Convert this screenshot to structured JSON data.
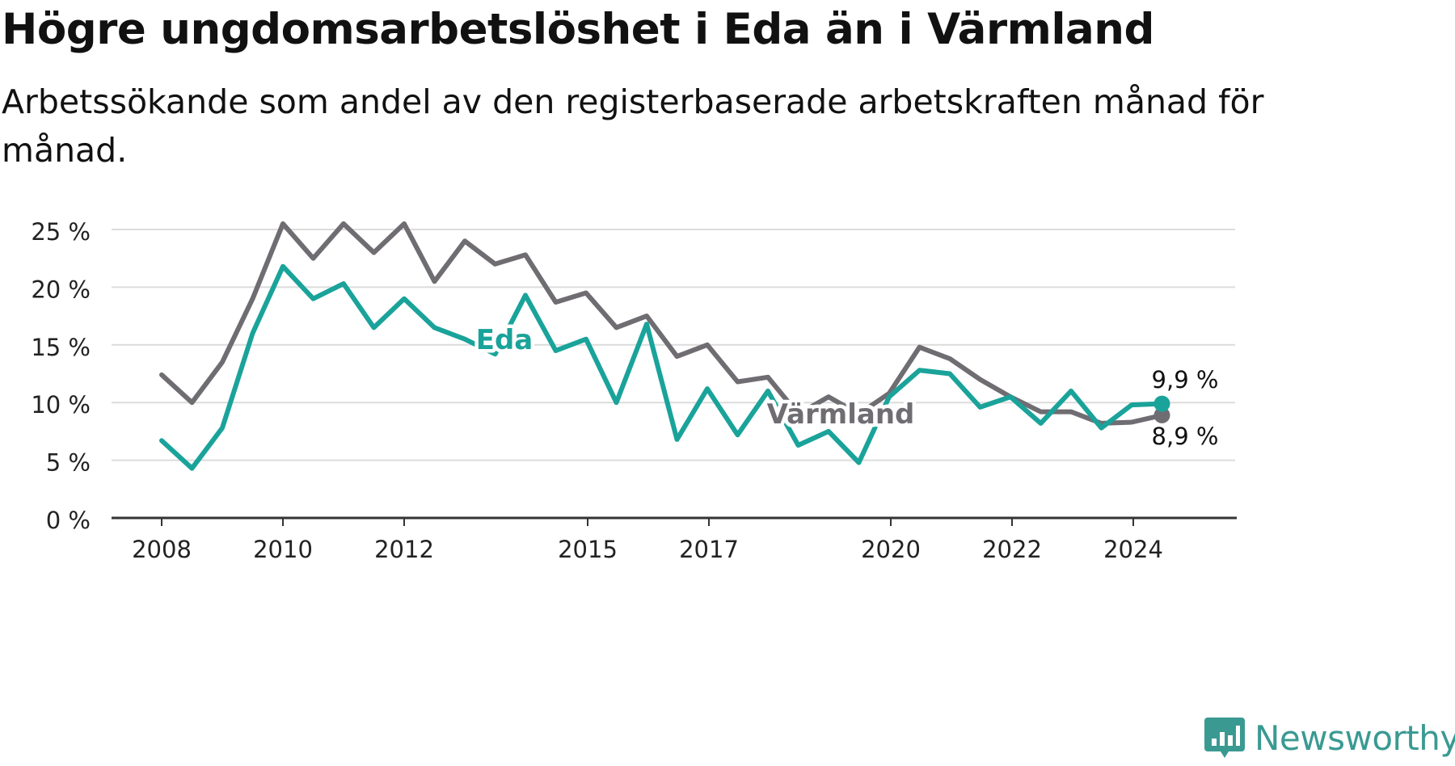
{
  "title": "Högre ungdomsarbetslöshet i Eda än i Värmland",
  "subtitle": "Arbetssökande som andel av den registerbaserade arbetskraften månad för månad.",
  "brand": {
    "name": "Newsworthy"
  },
  "colors": {
    "eda": "#1aa39a",
    "varmland": "#6f6d72",
    "grid": "#dcdcdc",
    "axis": "#333333",
    "brand": "#3a9a92"
  },
  "chart_data": {
    "type": "line",
    "title": "Högre ungdomsarbetslöshet i Eda än i Värmland",
    "subtitle": "Arbetssökande som andel av den registerbaserade arbetskraften månad för månad.",
    "x_ticks": [
      "2008",
      "2010",
      "2012",
      "2015",
      "2017",
      "2020",
      "2022",
      "2024"
    ],
    "y_ticks": [
      "0 %",
      "5 %",
      "10 %",
      "15 %",
      "20 %",
      "25 %"
    ],
    "ylim": [
      0,
      25
    ],
    "grid": true,
    "series": [
      {
        "name": "Värmland",
        "label": "Värmland",
        "end_label": "8,9 %",
        "x": [
          "2008-01",
          "2008-07",
          "2009-01",
          "2009-07",
          "2010-01",
          "2010-07",
          "2011-01",
          "2011-07",
          "2012-01",
          "2012-07",
          "2013-01",
          "2013-07",
          "2014-01",
          "2014-07",
          "2015-01",
          "2015-07",
          "2016-01",
          "2016-07",
          "2017-01",
          "2017-07",
          "2018-01",
          "2018-07",
          "2019-01",
          "2019-07",
          "2020-01",
          "2020-07",
          "2021-01",
          "2021-07",
          "2022-01",
          "2022-07",
          "2023-01",
          "2023-07",
          "2024-01",
          "2024-07"
        ],
        "values": [
          12.4,
          10.0,
          13.5,
          19.0,
          25.5,
          22.5,
          25.5,
          23.0,
          25.5,
          20.5,
          24.0,
          22.0,
          22.8,
          18.7,
          19.5,
          16.5,
          17.5,
          14.0,
          15.0,
          11.8,
          12.2,
          9.0,
          10.5,
          9.0,
          10.8,
          14.8,
          13.8,
          12.0,
          10.5,
          9.2,
          9.2,
          8.2,
          8.3,
          8.9
        ]
      },
      {
        "name": "Eda",
        "label": "Eda",
        "end_label": "9,9 %",
        "x": [
          "2008-01",
          "2008-07",
          "2009-01",
          "2009-07",
          "2010-01",
          "2010-07",
          "2011-01",
          "2011-07",
          "2012-01",
          "2012-07",
          "2013-01",
          "2013-07",
          "2014-01",
          "2014-07",
          "2015-01",
          "2015-07",
          "2016-01",
          "2016-07",
          "2017-01",
          "2017-07",
          "2018-01",
          "2018-07",
          "2019-01",
          "2019-07",
          "2020-01",
          "2020-07",
          "2021-01",
          "2021-07",
          "2022-01",
          "2022-07",
          "2023-01",
          "2023-07",
          "2024-01",
          "2024-07"
        ],
        "values": [
          6.7,
          4.3,
          7.8,
          16.0,
          21.8,
          19.0,
          20.3,
          16.5,
          19.0,
          16.5,
          15.5,
          14.2,
          19.3,
          14.5,
          15.5,
          10.0,
          16.8,
          6.8,
          11.2,
          7.2,
          11.0,
          6.3,
          7.5,
          4.8,
          10.5,
          12.8,
          12.5,
          9.6,
          10.5,
          8.2,
          11.0,
          7.8,
          9.8,
          9.9
        ]
      }
    ]
  }
}
